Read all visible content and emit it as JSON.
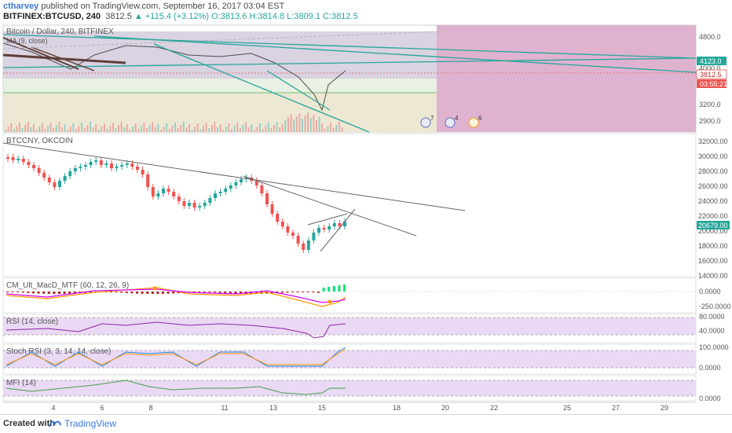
{
  "header": {
    "username": "ctharvey",
    "published_text": "published on TradingView.com, September 16, 2017 03:04 EST",
    "symbol_line": "BITFINEX:BTCUSD, 240",
    "last": "3812.5",
    "change": "▲ +115.4 (+3.12%)",
    "ohlc": "O:3813.6  H:3814.8  L:3809.1  C:3812.5"
  },
  "panes": {
    "main_title": "Bitcoin / Dollar, 240, BITFINEX",
    "main_sub": "MA (9, close)",
    "btccny_title": "BTCCNY, OKCOIN",
    "macd_title": "CM_Ult_MacD_MTF (60, 12, 26, 9)",
    "rsi_title": "RSI (14, close)",
    "stoch_title": "Stoch RSI (3, 3, 14, 14, close)",
    "mfi_title": "MFI (14)"
  },
  "axes": {
    "main_ticks": [
      "4800.0",
      "4000.0",
      "3200.0",
      "2900.0"
    ],
    "main_price_label": "4123.0",
    "main_last_label": "3812.5",
    "main_timer_label": "03:55:21",
    "cny_ticks": [
      "32000.00",
      "30000.00",
      "28000.00",
      "26000.00",
      "24000.00",
      "22000.00",
      "20000.00",
      "18000.00",
      "16000.00",
      "14000.00"
    ],
    "cny_last_label": "20679.00",
    "macd_ticks": [
      "0.0000",
      "-250.0000"
    ],
    "rsi_ticks": [
      "80.0000",
      "40.0000"
    ],
    "stoch_ticks": [
      "100.0000",
      "0.0000"
    ],
    "mfi_ticks": [
      "0.0000"
    ],
    "x_ticks": [
      "4",
      "6",
      "8",
      "11",
      "13",
      "15",
      "18",
      "20",
      "22",
      "25",
      "27",
      "29"
    ]
  },
  "events": {
    "flags": [
      "7",
      "4",
      "6"
    ]
  },
  "colors": {
    "up": "#26a69a",
    "down": "#ef5350",
    "trend": "#26a69a",
    "forecast_zone": "#d9a6c8",
    "indicator_bg": "#ead9f5"
  },
  "footer": {
    "created_with": "Created with",
    "brand": "TradingView"
  }
}
